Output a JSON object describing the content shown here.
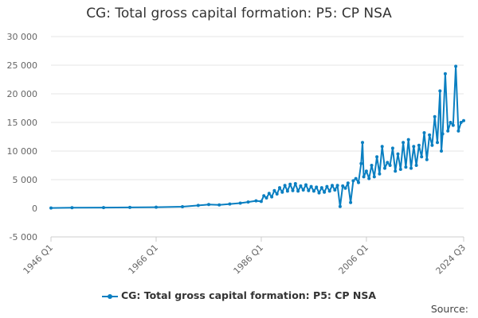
{
  "chart_data": {
    "type": "line",
    "title": "CG: Total gross capital formation: P5: CP NSA",
    "xlabel": "",
    "ylabel": "",
    "ylim": [
      -5000,
      30000
    ],
    "y_ticks": [
      -5000,
      0,
      5000,
      10000,
      15000,
      20000,
      25000,
      30000
    ],
    "y_tick_labels": [
      "-5 000",
      "0",
      "5 000",
      "10 000",
      "15 000",
      "20 000",
      "25 000",
      "30 000"
    ],
    "x_ticks": [
      "1946 Q1",
      "1966 Q1",
      "1986 Q1",
      "2006 Q1",
      "2024 Q3"
    ],
    "x_range": [
      "1946 Q1",
      "2024 Q3"
    ],
    "grid": true,
    "legend_position": "bottom",
    "colors": {
      "series": "#0a7fc1",
      "grid": "#e6e6e6"
    },
    "series": [
      {
        "name": "CG: Total gross capital formation: P5: CP NSA",
        "points": [
          [
            "1946 Q1",
            50
          ],
          [
            "1950 Q1",
            100
          ],
          [
            "1956 Q1",
            120
          ],
          [
            "1961 Q1",
            150
          ],
          [
            "1966 Q1",
            200
          ],
          [
            "1971 Q1",
            280
          ],
          [
            "1974 Q1",
            500
          ],
          [
            "1976 Q1",
            650
          ],
          [
            "1978 Q1",
            600
          ],
          [
            "1980 Q1",
            750
          ],
          [
            "1982 Q1",
            900
          ],
          [
            "1983 Q3",
            1100
          ],
          [
            "1985 Q1",
            1300
          ],
          [
            "1986 Q1",
            1200
          ],
          [
            "1986 Q3",
            2200
          ],
          [
            "1987 Q1",
            1800
          ],
          [
            "1987 Q3",
            2600
          ],
          [
            "1988 Q1",
            2000
          ],
          [
            "1988 Q3",
            3100
          ],
          [
            "1989 Q1",
            2500
          ],
          [
            "1989 Q3",
            3600
          ],
          [
            "1990 Q1",
            2800
          ],
          [
            "1990 Q3",
            4000
          ],
          [
            "1991 Q1",
            3000
          ],
          [
            "1991 Q3",
            4200
          ],
          [
            "1992 Q1",
            3100
          ],
          [
            "1992 Q3",
            4300
          ],
          [
            "1993 Q1",
            3000
          ],
          [
            "1993 Q3",
            3900
          ],
          [
            "1994 Q1",
            3200
          ],
          [
            "1994 Q3",
            4100
          ],
          [
            "1995 Q1",
            3100
          ],
          [
            "1995 Q3",
            3800
          ],
          [
            "1996 Q1",
            3000
          ],
          [
            "1996 Q3",
            3700
          ],
          [
            "1997 Q1",
            2700
          ],
          [
            "1997 Q3",
            3600
          ],
          [
            "1998 Q1",
            2800
          ],
          [
            "1998 Q3",
            3800
          ],
          [
            "1999 Q1",
            3000
          ],
          [
            "1999 Q3",
            4000
          ],
          [
            "2000 Q1",
            3200
          ],
          [
            "2000 Q3",
            4000
          ],
          [
            "2001 Q1",
            300
          ],
          [
            "2001 Q3",
            3900
          ],
          [
            "2002 Q1",
            3500
          ],
          [
            "2002 Q3",
            4400
          ],
          [
            "2003 Q1",
            1000
          ],
          [
            "2003 Q3",
            4800
          ],
          [
            "2004 Q1",
            5200
          ],
          [
            "2004 Q3",
            4500
          ],
          [
            "2005 Q1",
            7800
          ],
          [
            "2005 Q2",
            11500
          ],
          [
            "2005 Q3",
            5500
          ],
          [
            "2006 Q1",
            6500
          ],
          [
            "2006 Q3",
            5200
          ],
          [
            "2007 Q1",
            7500
          ],
          [
            "2007 Q3",
            5500
          ],
          [
            "2008 Q1",
            9000
          ],
          [
            "2008 Q3",
            6000
          ],
          [
            "2009 Q1",
            10800
          ],
          [
            "2009 Q3",
            7000
          ],
          [
            "2010 Q1",
            8000
          ],
          [
            "2010 Q3",
            7500
          ],
          [
            "2011 Q1",
            10500
          ],
          [
            "2011 Q3",
            6500
          ],
          [
            "2012 Q1",
            9500
          ],
          [
            "2012 Q3",
            6800
          ],
          [
            "2013 Q1",
            11500
          ],
          [
            "2013 Q3",
            7200
          ],
          [
            "2014 Q1",
            12000
          ],
          [
            "2014 Q3",
            7000
          ],
          [
            "2015 Q1",
            10800
          ],
          [
            "2015 Q3",
            7500
          ],
          [
            "2016 Q1",
            11000
          ],
          [
            "2016 Q3",
            9000
          ],
          [
            "2017 Q1",
            13200
          ],
          [
            "2017 Q3",
            8500
          ],
          [
            "2018 Q1",
            12800
          ],
          [
            "2018 Q3",
            11000
          ],
          [
            "2019 Q1",
            16000
          ],
          [
            "2019 Q3",
            11500
          ],
          [
            "2020 Q1",
            20500
          ],
          [
            "2020 Q2",
            10000
          ],
          [
            "2020 Q3",
            13000
          ],
          [
            "2021 Q1",
            23500
          ],
          [
            "2021 Q3",
            13500
          ],
          [
            "2022 Q1",
            15000
          ],
          [
            "2022 Q3",
            14500
          ],
          [
            "2023 Q1",
            24800
          ],
          [
            "2023 Q3",
            13500
          ],
          [
            "2024 Q1",
            15000
          ],
          [
            "2024 Q3",
            15300
          ]
        ]
      }
    ]
  },
  "legend": {
    "label": "CG: Total gross capital formation: P5: CP NSA"
  },
  "footer": {
    "source": "Source:"
  }
}
